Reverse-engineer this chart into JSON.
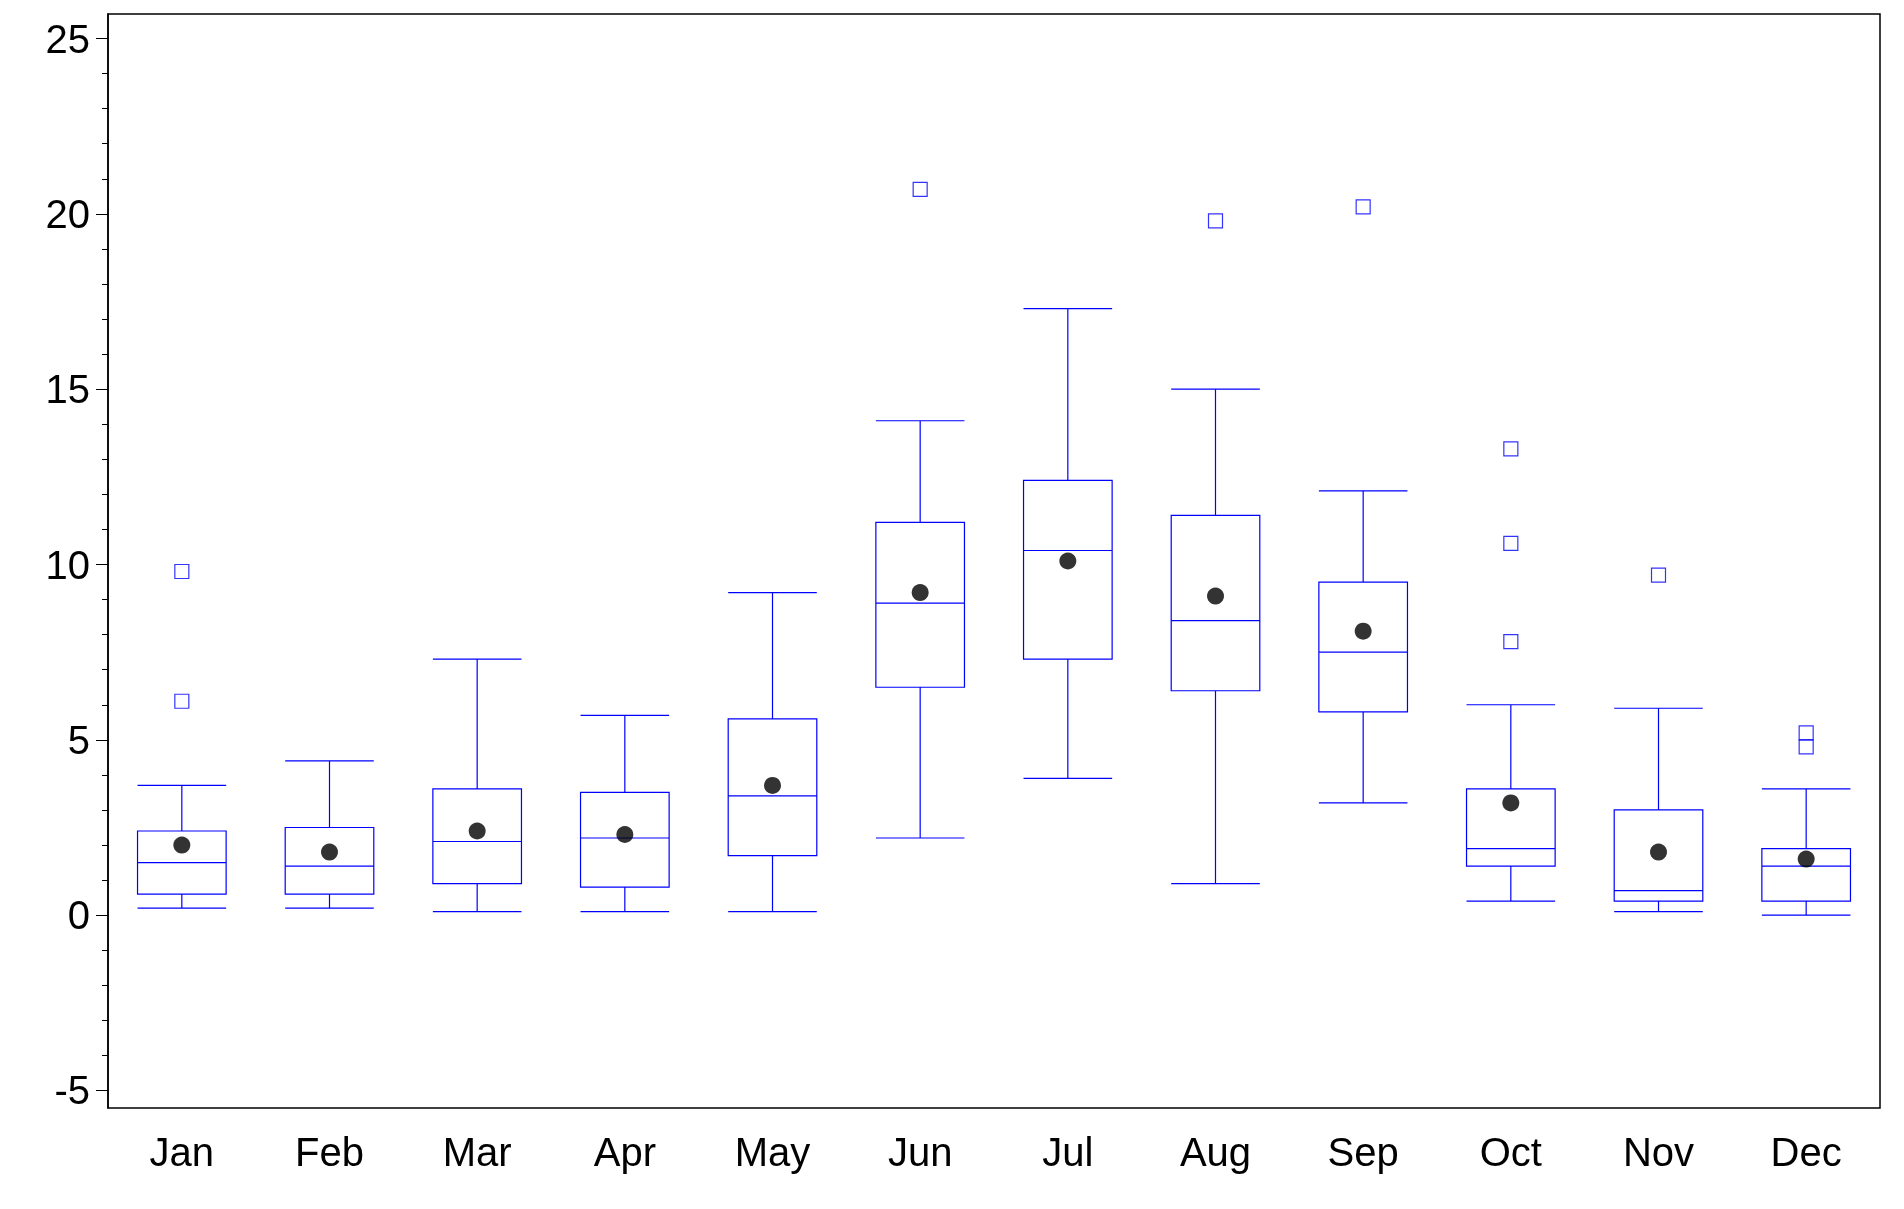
{
  "chart_data": {
    "type": "box",
    "categories": [
      "Jan",
      "Feb",
      "Mar",
      "Apr",
      "May",
      "Jun",
      "Jul",
      "Aug",
      "Sep",
      "Oct",
      "Nov",
      "Dec"
    ],
    "color": "#0000ff",
    "marker": "circle",
    "ylim": [
      -5.5,
      25.7
    ],
    "yticks": [
      -5,
      0,
      5,
      10,
      15,
      20,
      25
    ],
    "grid": false,
    "boxes": [
      {
        "low": 0.2,
        "q1": 0.6,
        "median": 1.5,
        "q3": 2.4,
        "high": 3.7,
        "mean": 2.0,
        "outliers": [
          9.8,
          6.1
        ]
      },
      {
        "low": 0.2,
        "q1": 0.6,
        "median": 1.4,
        "q3": 2.5,
        "high": 4.4,
        "mean": 1.8
      },
      {
        "low": 0.1,
        "q1": 0.9,
        "median": 2.1,
        "q3": 3.6,
        "high": 7.3,
        "mean": 2.4
      },
      {
        "low": 0.1,
        "q1": 0.8,
        "median": 2.2,
        "q3": 3.5,
        "high": 5.7,
        "mean": 2.3
      },
      {
        "low": 0.1,
        "q1": 1.7,
        "median": 3.4,
        "q3": 5.6,
        "high": 9.2,
        "mean": 3.7
      },
      {
        "low": 2.2,
        "q1": 6.5,
        "median": 8.9,
        "q3": 11.2,
        "high": 14.1,
        "mean": 9.2,
        "outliers": [
          20.7
        ]
      },
      {
        "low": 3.9,
        "q1": 7.3,
        "median": 10.4,
        "q3": 12.4,
        "high": 17.3,
        "mean": 10.1
      },
      {
        "low": 0.9,
        "q1": 6.4,
        "median": 8.4,
        "q3": 11.4,
        "high": 15.0,
        "mean": 9.1,
        "outliers": [
          19.8
        ]
      },
      {
        "low": 3.2,
        "q1": 5.8,
        "median": 7.5,
        "q3": 9.5,
        "high": 12.1,
        "mean": 8.1,
        "outliers": [
          20.2
        ]
      },
      {
        "low": 0.4,
        "q1": 1.4,
        "median": 1.9,
        "q3": 3.6,
        "high": 6.0,
        "mean": 3.2,
        "outliers": [
          13.3,
          10.6,
          7.8
        ]
      },
      {
        "low": 0.1,
        "q1": 0.4,
        "median": 0.7,
        "q3": 3.0,
        "high": 5.9,
        "mean": 1.8,
        "outliers": [
          9.7
        ]
      },
      {
        "low": 0.0,
        "q1": 0.4,
        "median": 1.4,
        "q3": 1.9,
        "high": 3.6,
        "mean": 1.6,
        "outliers": [
          5.2,
          4.8
        ]
      }
    ]
  }
}
